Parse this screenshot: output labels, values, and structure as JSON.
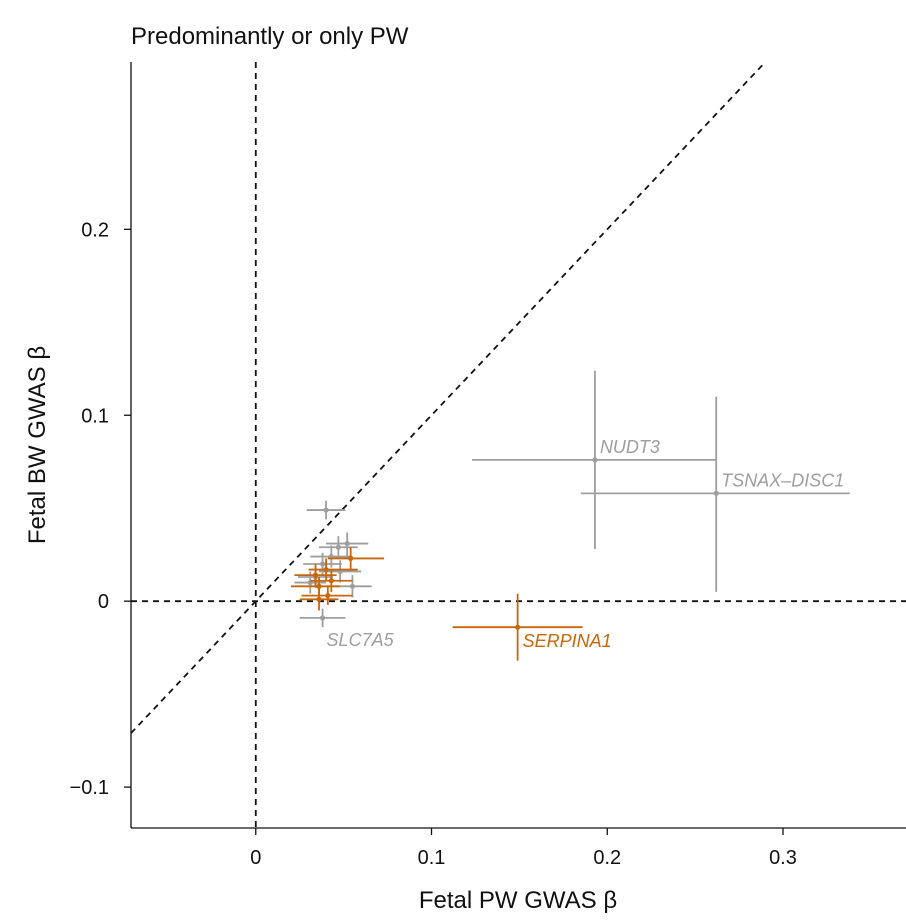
{
  "chart_data": {
    "type": "scatter",
    "title": "Predominantly or only PW",
    "xlabel": "Fetal PW GWAS β",
    "ylabel": "Fetal BW GWAS β",
    "xlim": [
      -0.071,
      0.37
    ],
    "ylim": [
      -0.122,
      0.29
    ],
    "x_ticks": [
      0,
      0.1,
      0.2,
      0.3
    ],
    "x_tick_labels": [
      "0",
      "0.1",
      "0.2",
      "0.3"
    ],
    "y_ticks": [
      -0.1,
      0,
      0.1,
      0.2
    ],
    "y_tick_labels": [
      "−0.1",
      "0",
      "0.1",
      "0.2"
    ],
    "reference_lines": [
      "x = 0",
      "y = 0",
      "y = x"
    ],
    "grid": false,
    "colors": {
      "grey": "#9e9e9e",
      "orange": "#c8660a",
      "axis": "#111111"
    },
    "points": [
      {
        "x": 0.04,
        "y": 0.049,
        "xlo": 0.029,
        "xhi": 0.051,
        "ylo": 0.044,
        "yhi": 0.054,
        "color": "grey"
      },
      {
        "x": 0.052,
        "y": 0.031,
        "xlo": 0.04,
        "xhi": 0.064,
        "ylo": 0.024,
        "yhi": 0.037,
        "color": "grey"
      },
      {
        "x": 0.047,
        "y": 0.029,
        "xlo": 0.036,
        "xhi": 0.058,
        "ylo": 0.023,
        "yhi": 0.035,
        "color": "grey"
      },
      {
        "x": 0.043,
        "y": 0.024,
        "xlo": 0.031,
        "xhi": 0.055,
        "ylo": 0.018,
        "yhi": 0.03,
        "color": "grey"
      },
      {
        "x": 0.038,
        "y": 0.02,
        "xlo": 0.027,
        "xhi": 0.049,
        "ylo": 0.014,
        "yhi": 0.026,
        "color": "grey"
      },
      {
        "x": 0.048,
        "y": 0.016,
        "xlo": 0.036,
        "xhi": 0.06,
        "ylo": 0.01,
        "yhi": 0.022,
        "color": "grey"
      },
      {
        "x": 0.034,
        "y": 0.013,
        "xlo": 0.024,
        "xhi": 0.044,
        "ylo": 0.007,
        "yhi": 0.019,
        "color": "grey"
      },
      {
        "x": 0.055,
        "y": 0.008,
        "xlo": 0.044,
        "xhi": 0.066,
        "ylo": 0.002,
        "yhi": 0.014,
        "color": "grey"
      },
      {
        "x": 0.031,
        "y": 0.01,
        "xlo": 0.022,
        "xhi": 0.04,
        "ylo": 0.004,
        "yhi": 0.016,
        "color": "grey"
      },
      {
        "x": 0.038,
        "y": -0.009,
        "xlo": 0.025,
        "xhi": 0.051,
        "ylo": -0.014,
        "yhi": -0.004,
        "color": "grey",
        "label": "SLC7A5"
      },
      {
        "x": 0.193,
        "y": 0.076,
        "xlo": 0.123,
        "xhi": 0.262,
        "ylo": 0.028,
        "yhi": 0.124,
        "color": "grey",
        "label": "NUDT3"
      },
      {
        "x": 0.262,
        "y": 0.058,
        "xlo": 0.185,
        "xhi": 0.338,
        "ylo": 0.005,
        "yhi": 0.11,
        "color": "grey",
        "label": "TSNAX–DISC1"
      },
      {
        "x": 0.054,
        "y": 0.023,
        "xlo": 0.041,
        "xhi": 0.073,
        "ylo": 0.017,
        "yhi": 0.029,
        "color": "orange"
      },
      {
        "x": 0.04,
        "y": 0.017,
        "xlo": 0.03,
        "xhi": 0.058,
        "ylo": 0.011,
        "yhi": 0.023,
        "color": "orange"
      },
      {
        "x": 0.034,
        "y": 0.014,
        "xlo": 0.022,
        "xhi": 0.046,
        "ylo": 0.008,
        "yhi": 0.02,
        "color": "orange"
      },
      {
        "x": 0.043,
        "y": 0.011,
        "xlo": 0.031,
        "xhi": 0.055,
        "ylo": 0.005,
        "yhi": 0.017,
        "color": "orange"
      },
      {
        "x": 0.036,
        "y": 0.008,
        "xlo": 0.02,
        "xhi": 0.048,
        "ylo": 0.003,
        "yhi": 0.013,
        "color": "orange"
      },
      {
        "x": 0.041,
        "y": 0.003,
        "xlo": 0.026,
        "xhi": 0.055,
        "ylo": -0.002,
        "yhi": 0.008,
        "color": "orange"
      },
      {
        "x": 0.036,
        "y": 0.001,
        "xlo": 0.025,
        "xhi": 0.047,
        "ylo": -0.005,
        "yhi": 0.007,
        "color": "orange"
      },
      {
        "x": 0.149,
        "y": -0.014,
        "xlo": 0.112,
        "xhi": 0.186,
        "ylo": -0.032,
        "yhi": 0.004,
        "color": "orange",
        "label": "SERPINA1"
      }
    ]
  }
}
